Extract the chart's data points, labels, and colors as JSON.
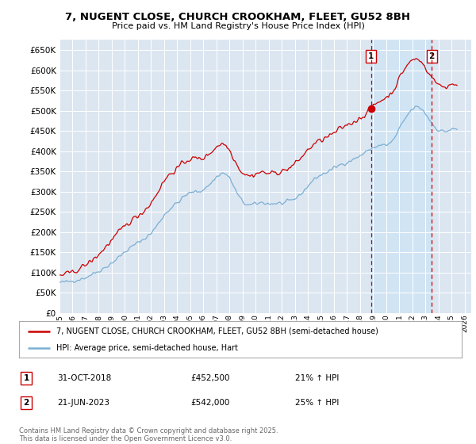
{
  "title_line1": "7, NUGENT CLOSE, CHURCH CROOKHAM, FLEET, GU52 8BH",
  "title_line2": "Price paid vs. HM Land Registry's House Price Index (HPI)",
  "yticks": [
    0,
    50000,
    100000,
    150000,
    200000,
    250000,
    300000,
    350000,
    400000,
    450000,
    500000,
    550000,
    600000,
    650000
  ],
  "xlim_start": 1995.0,
  "xlim_end": 2026.5,
  "ylim_min": 0,
  "ylim_max": 675000,
  "background_color": "#ffffff",
  "plot_bg_color": "#dce6f1",
  "grid_color": "#ffffff",
  "line1_color": "#cc0000",
  "line2_color": "#7bafd4",
  "vline_color": "#cc0000",
  "shade_color": "#d0e4f5",
  "marker1_date": 2018.83,
  "marker2_date": 2023.47,
  "marker1_value": 452500,
  "legend_label1": "7, NUGENT CLOSE, CHURCH CROOKHAM, FLEET, GU52 8BH (semi-detached house)",
  "legend_label2": "HPI: Average price, semi-detached house, Hart",
  "footnote": "Contains HM Land Registry data © Crown copyright and database right 2025.\nThis data is licensed under the Open Government Licence v3.0."
}
